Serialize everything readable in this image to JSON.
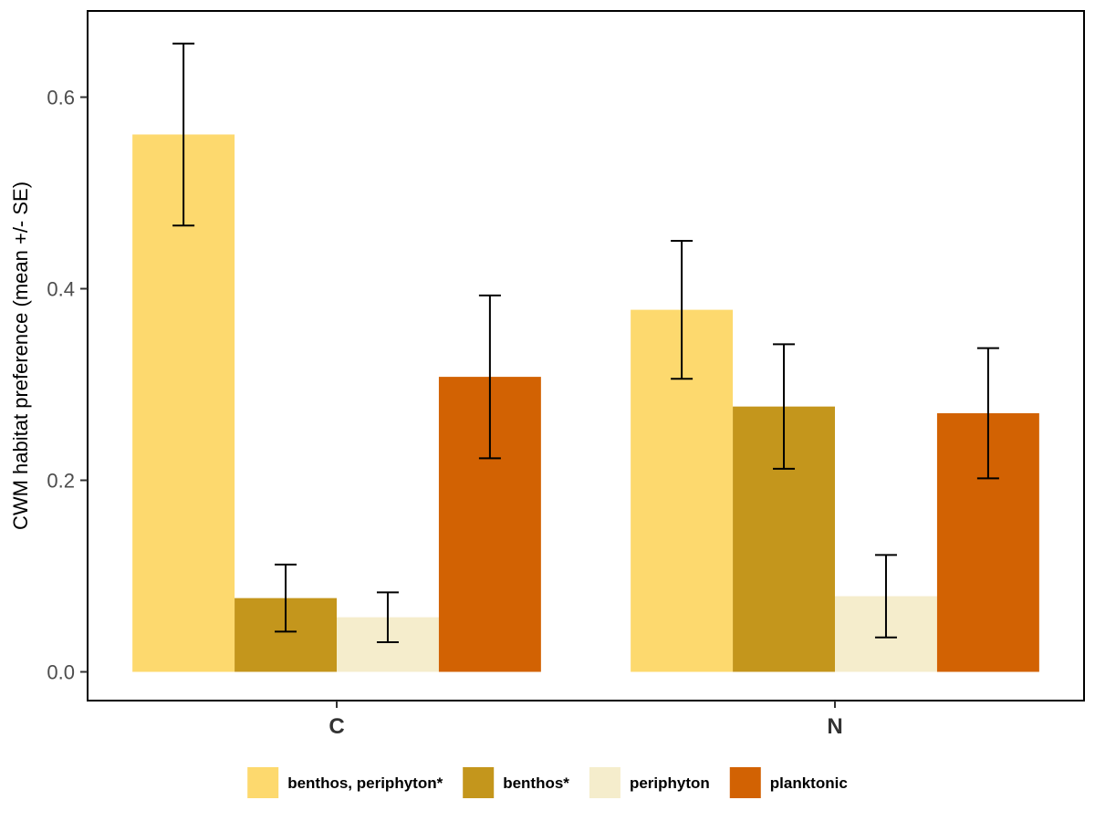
{
  "chart_data": {
    "type": "bar",
    "title": "",
    "xlabel": "",
    "ylabel": "CWM habitat preference (mean +/- SE)",
    "categories": [
      "C",
      "N"
    ],
    "ylim": [
      -0.03,
      0.69
    ],
    "yticks": [
      0.0,
      0.2,
      0.4,
      0.6
    ],
    "ytick_labels": [
      "0.0",
      "0.2",
      "0.4",
      "0.6"
    ],
    "grid": false,
    "legend_position": "bottom",
    "series": [
      {
        "name": "benthos, periphyton*",
        "color": "#FDD96E",
        "values": [
          0.561,
          0.378
        ],
        "se": [
          0.095,
          0.072
        ]
      },
      {
        "name": "benthos*",
        "color": "#C4961C",
        "values": [
          0.077,
          0.277
        ],
        "se": [
          0.035,
          0.065
        ]
      },
      {
        "name": "periphyton",
        "color": "#F5EDCC",
        "values": [
          0.057,
          0.079
        ],
        "se": [
          0.026,
          0.043
        ]
      },
      {
        "name": "planktonic",
        "color": "#D26203",
        "values": [
          0.308,
          0.27
        ],
        "se": [
          0.085,
          0.068
        ]
      }
    ]
  }
}
